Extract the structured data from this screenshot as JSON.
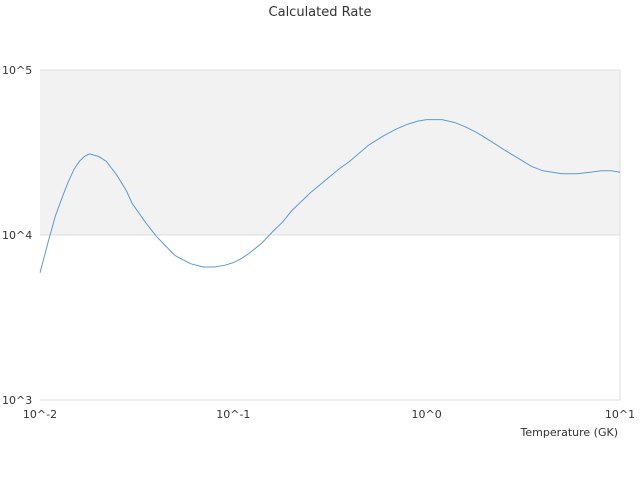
{
  "chart_data": {
    "type": "line",
    "title": "Calculated Rate",
    "xlabel": "Temperature (GK)",
    "ylabel": "",
    "x_scale": "log",
    "y_scale": "log",
    "xlim": [
      0.01,
      10
    ],
    "ylim": [
      1000,
      100000
    ],
    "x_ticks": [
      "10^-2",
      "10^-1",
      "10^0",
      "10^1"
    ],
    "y_ticks": [
      "10^3",
      "10^4",
      "10^5"
    ],
    "grid": true,
    "colors": {
      "line": "#5b9bd5",
      "band": "#f2f2f2"
    },
    "series": [
      {
        "name": "",
        "x": [
          0.01,
          0.011,
          0.012,
          0.013,
          0.014,
          0.015,
          0.016,
          0.017,
          0.018,
          0.02,
          0.022,
          0.025,
          0.028,
          0.03,
          0.035,
          0.04,
          0.045,
          0.05,
          0.06,
          0.07,
          0.08,
          0.09,
          0.1,
          0.11,
          0.12,
          0.14,
          0.16,
          0.18,
          0.2,
          0.25,
          0.3,
          0.35,
          0.4,
          0.5,
          0.6,
          0.7,
          0.8,
          0.9,
          1.0,
          1.2,
          1.4,
          1.6,
          1.8,
          2.0,
          2.5,
          3.0,
          3.5,
          4.0,
          5.0,
          6.0,
          7.0,
          8.0,
          9.0,
          10.0
        ],
        "y": [
          5900,
          9000,
          13000,
          16800,
          21000,
          25000,
          28000,
          30000,
          31000,
          30000,
          28000,
          23000,
          18500,
          15500,
          12000,
          9800,
          8500,
          7500,
          6700,
          6400,
          6400,
          6550,
          6800,
          7200,
          7700,
          8900,
          10500,
          12000,
          14000,
          18000,
          21500,
          25000,
          28000,
          35000,
          40000,
          44000,
          47000,
          49000,
          50000,
          50000,
          48000,
          45000,
          42000,
          39000,
          33000,
          29000,
          26000,
          24500,
          23500,
          23500,
          24000,
          24500,
          24500,
          24000
        ]
      }
    ]
  }
}
